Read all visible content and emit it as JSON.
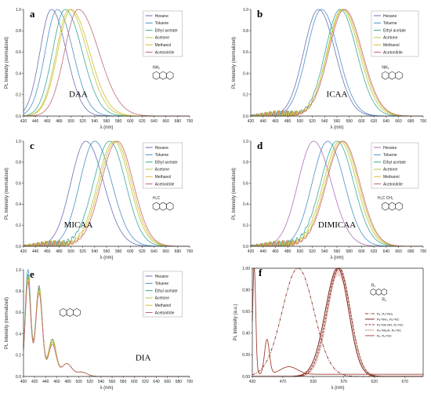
{
  "chart_data": [
    {
      "type": "line",
      "panel": "a",
      "compound": "DAA",
      "xlabel": "λ (nm)",
      "ylabel": "PL Intensity (normalized)",
      "xlim": [
        420,
        700
      ],
      "ylim": [
        0,
        1.0
      ],
      "xticks": [
        420,
        440,
        460,
        480,
        500,
        520,
        540,
        560,
        580,
        600,
        620,
        640,
        660,
        680,
        700
      ],
      "yticks": [
        0.0,
        0.2,
        0.4,
        0.6,
        0.8,
        1.0
      ],
      "substituent": "NH₂",
      "series": [
        {
          "name": "Hexane",
          "color": "#6a70b8",
          "peak": 467,
          "wl": 32,
          "wr": 42
        },
        {
          "name": "Toluene",
          "color": "#4a90c8",
          "peak": 477,
          "wl": 34,
          "wr": 44
        },
        {
          "name": "Ethyl acetate",
          "color": "#38a898",
          "peak": 490,
          "wl": 35,
          "wr": 48
        },
        {
          "name": "Acetone",
          "color": "#b8c838",
          "peak": 497,
          "wl": 36,
          "wr": 50
        },
        {
          "name": "Methanol",
          "color": "#d8b830",
          "peak": 500,
          "wl": 37,
          "wr": 52
        },
        {
          "name": "Acetonitrile",
          "color": "#c06878",
          "peak": 512,
          "wl": 38,
          "wr": 58
        }
      ]
    },
    {
      "type": "line",
      "panel": "b",
      "compound": "ICAA",
      "xlabel": "λ (nm)",
      "ylabel": "PL Intensity (normalized)",
      "xlim": [
        420,
        700
      ],
      "ylim": [
        0,
        1.0
      ],
      "xticks": [
        420,
        440,
        460,
        480,
        500,
        520,
        540,
        560,
        580,
        600,
        620,
        640,
        660,
        680,
        700
      ],
      "yticks": [
        0.0,
        0.2,
        0.4,
        0.6,
        0.8,
        1.0
      ],
      "substituent": "NH₂",
      "series": [
        {
          "name": "Hexane",
          "color": "#6a70b8",
          "peak": 530,
          "wl": 40,
          "wr": 45
        },
        {
          "name": "Toluene",
          "color": "#4a90c8",
          "peak": 535,
          "wl": 40,
          "wr": 45
        },
        {
          "name": "Ethyl acetate",
          "color": "#38a898",
          "peak": 565,
          "wl": 40,
          "wr": 45
        },
        {
          "name": "Acetone",
          "color": "#b8c838",
          "peak": 568,
          "wl": 40,
          "wr": 47
        },
        {
          "name": "Methanol",
          "color": "#d8b830",
          "peak": 570,
          "wl": 42,
          "wr": 48
        },
        {
          "name": "Acetonitrile",
          "color": "#c06878",
          "peak": 572,
          "wl": 42,
          "wr": 48
        }
      ]
    },
    {
      "type": "line",
      "panel": "c",
      "compound": "MICAA",
      "xlabel": "λ (nm)",
      "ylabel": "PL Intensity (normalized)",
      "xlim": [
        420,
        700
      ],
      "ylim": [
        0,
        1.0
      ],
      "xticks": [
        420,
        440,
        460,
        480,
        500,
        520,
        540,
        560,
        580,
        600,
        620,
        640,
        660,
        680,
        700
      ],
      "yticks": [
        0.0,
        0.2,
        0.4,
        0.6,
        0.8,
        1.0
      ],
      "substituent": "H₃C",
      "series": [
        {
          "name": "Hexane",
          "color": "#6a70b8",
          "peak": 525,
          "wl": 42,
          "wr": 50
        },
        {
          "name": "Toluene",
          "color": "#4a90c8",
          "peak": 540,
          "wl": 42,
          "wr": 48
        },
        {
          "name": "Ethyl acetate",
          "color": "#38a898",
          "peak": 565,
          "wl": 45,
          "wr": 45
        },
        {
          "name": "Acetone",
          "color": "#b8c838",
          "peak": 572,
          "wl": 45,
          "wr": 45
        },
        {
          "name": "Methanol",
          "color": "#d8b830",
          "peak": 575,
          "wl": 45,
          "wr": 45
        },
        {
          "name": "Acetonitrile",
          "color": "#c06878",
          "peak": 578,
          "wl": 45,
          "wr": 45
        }
      ]
    },
    {
      "type": "line",
      "panel": "d",
      "compound": "DIMICAA",
      "xlabel": "λ (nm)",
      "ylabel": "PL Intensity (normalized)",
      "xlim": [
        420,
        700
      ],
      "ylim": [
        0,
        1.0
      ],
      "xticks": [
        420,
        440,
        460,
        480,
        500,
        520,
        540,
        560,
        580,
        600,
        620,
        640,
        660,
        680,
        700
      ],
      "yticks": [
        0.0,
        0.2,
        0.4,
        0.6,
        0.8,
        1.0
      ],
      "substituent": "H₃C  CH₃",
      "series": [
        {
          "name": "Hexane",
          "color": "#b070b8",
          "peak": 522,
          "wl": 42,
          "wr": 48
        },
        {
          "name": "Toluene",
          "color": "#4a90c8",
          "peak": 545,
          "wl": 42,
          "wr": 45
        },
        {
          "name": "Ethyl acetate",
          "color": "#38a898",
          "peak": 560,
          "wl": 44,
          "wr": 45
        },
        {
          "name": "Acetone",
          "color": "#b8c838",
          "peak": 565,
          "wl": 45,
          "wr": 45
        },
        {
          "name": "Methanol",
          "color": "#d8b830",
          "peak": 568,
          "wl": 45,
          "wr": 45
        },
        {
          "name": "Acetonitrile",
          "color": "#c06878",
          "peak": 570,
          "wl": 45,
          "wr": 45
        }
      ]
    },
    {
      "type": "line",
      "panel": "e",
      "compound": "DIA",
      "xlabel": "λ (nm)",
      "ylabel": "PL Intensity (normalized)",
      "xlim": [
        400,
        700
      ],
      "ylim": [
        0,
        1.0
      ],
      "xticks": [
        400,
        420,
        440,
        460,
        480,
        500,
        520,
        540,
        560,
        580,
        600,
        620,
        640,
        660,
        680,
        700
      ],
      "yticks": [
        0.0,
        0.2,
        0.4,
        0.6,
        0.8,
        1.0
      ],
      "series": [
        {
          "name": "Hexane",
          "color": "#6a70b8",
          "p1": 0.92,
          "p2": 0.82,
          "p3": 0.32
        },
        {
          "name": "Toluene",
          "color": "#4a90c8",
          "p1": 1.0,
          "p2": 0.85,
          "p3": 0.35
        },
        {
          "name": "Ethyl acetate",
          "color": "#38a898",
          "p1": 0.95,
          "p2": 0.83,
          "p3": 0.34
        },
        {
          "name": "Acetone",
          "color": "#b8c838",
          "p1": 0.9,
          "p2": 0.8,
          "p3": 0.32
        },
        {
          "name": "Methanol",
          "color": "#d8b830",
          "p1": 0.93,
          "p2": 0.84,
          "p3": 0.35
        },
        {
          "name": "Acetonitrile",
          "color": "#c06878",
          "p1": 0.88,
          "p2": 0.78,
          "p3": 0.3
        }
      ]
    },
    {
      "type": "line",
      "panel": "f",
      "xlabel": "λ (nm)",
      "ylabel": "PL Intensity (a.u.)",
      "xlim": [
        420,
        700
      ],
      "ylim": [
        0,
        1.0
      ],
      "xticks": [
        420,
        470,
        520,
        570,
        620,
        670
      ],
      "yticks": [
        0.0,
        0.2,
        0.4,
        0.6,
        0.8,
        1.0
      ],
      "ytick_labels": [
        "0.00",
        "0.20",
        "0.40",
        "0.60",
        "0.80",
        "1.00"
      ],
      "series": [
        {
          "name": "R₁, R₂=NH₂",
          "color": "#8a2a1a",
          "dash": "4,1.5,1,1.5"
        },
        {
          "name": "R₁=NH₂, R₂=NC",
          "color": "#6a1a10",
          "dash": ""
        },
        {
          "name": "R₁=Me-NH, R₂=NC",
          "color": "#7a2214",
          "dash": "3,1.5"
        },
        {
          "name": "R₁=Me₂N, R₂=NC",
          "color": "#9a3020",
          "dash": "1,1"
        },
        {
          "name": "R₁, R₂=NC",
          "color": "#a04030",
          "dash": ""
        }
      ],
      "legend_labels": [
        "R₁, R₂=NH₂",
        "R₁=NH₂, R₂=NC",
        "R₁=Me-NH, R₂=NC",
        "R₁=Me₂N, R₂=NC",
        "R₁, R₂=NC"
      ],
      "legend_position": "right",
      "struct_labels": [
        "R₁",
        "R₂"
      ]
    }
  ]
}
